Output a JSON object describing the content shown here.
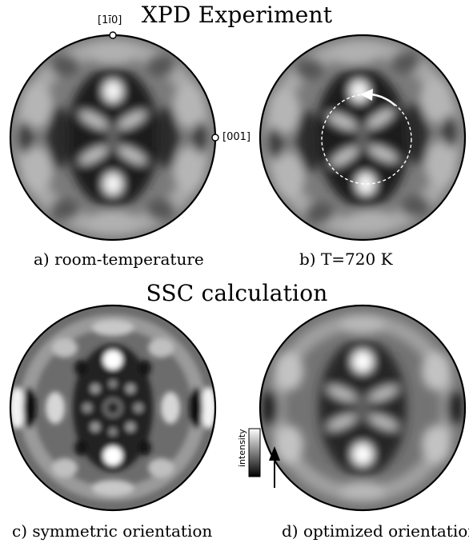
{
  "figure": {
    "title_top": "XPD Experiment",
    "title_middle": "SSC calculation",
    "panels": [
      {
        "caption": "a) room-temperature"
      },
      {
        "caption": "b) T=720 K"
      },
      {
        "caption": "c) symmetric orientation"
      },
      {
        "caption": "d) optimized orientation"
      }
    ],
    "axis_labels": {
      "top": "[1ī0]",
      "right": "[001]"
    },
    "colorbar_label": "intensity"
  }
}
